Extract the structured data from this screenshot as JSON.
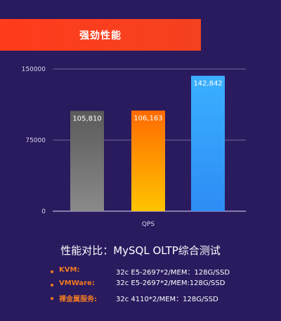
{
  "banner": {
    "title": "强劲性能"
  },
  "chart_data": {
    "type": "bar",
    "title": "",
    "xlabel": "QPS",
    "ylabel": "",
    "categories": [
      "KVM",
      "VMWare",
      "裸金属服务"
    ],
    "values": [
      105810,
      106163,
      142842
    ],
    "value_labels": [
      "105,810",
      "106,163",
      "142,842"
    ],
    "yticks": [
      0,
      75000,
      150000
    ],
    "ylim": [
      0,
      150000
    ],
    "grid": true,
    "colors": [
      "#6b6b6b",
      "#ffb300",
      "#3aa7ff"
    ]
  },
  "test_title": "性能对比：MySQL OLTP综合测试",
  "legend": [
    {
      "name": "KVM:",
      "spec": "32c E5-2697*2/MEM：128G/SSD"
    },
    {
      "name": "VMWare:",
      "spec": "32c E5-2697*2/MEM:128G/SSD"
    },
    {
      "name": "裸金属服务:",
      "spec": "32c 4110*2/MEM：128G/SSD"
    }
  ]
}
